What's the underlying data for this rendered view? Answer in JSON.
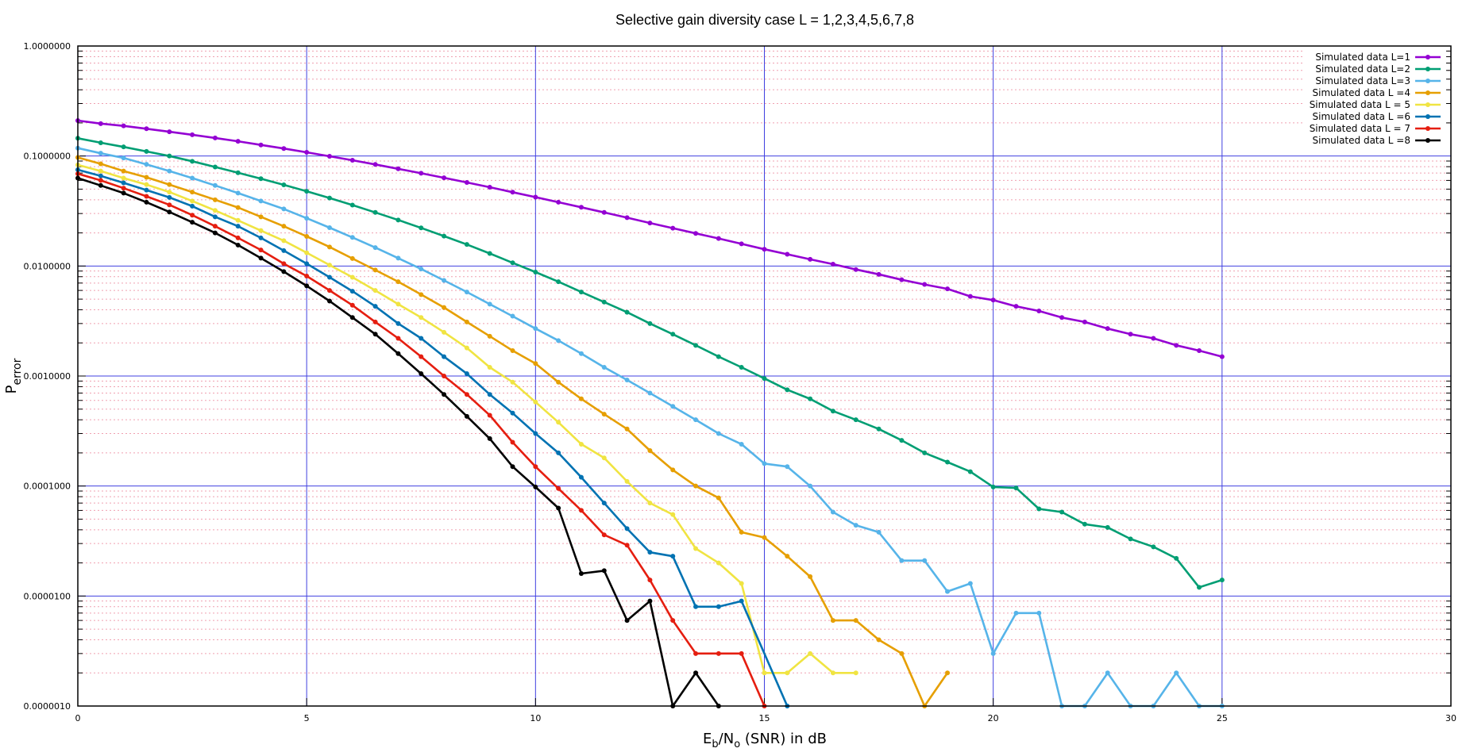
{
  "chart_data": {
    "type": "line",
    "title": "Selective gain diversity case L = 1,2,3,4,5,6,7,8",
    "xlabel": {
      "main": "E",
      "sub1": "b",
      "mid": "/N",
      "sub2": "o",
      "tail": " (SNR) in dB"
    },
    "ylabel": {
      "main": "P",
      "sub": "error"
    },
    "xlim": [
      0,
      30
    ],
    "ylim": [
      1e-06,
      1
    ],
    "yscale": "log",
    "xticks": [
      "0",
      "5",
      "10",
      "15",
      "20",
      "25",
      "30"
    ],
    "yticks": [
      "1.0000000",
      "0.1000000",
      "0.0100000",
      "0.0010000",
      "0.0001000",
      "0.0000100",
      "0.0000010"
    ],
    "grid": {
      "major": true,
      "minor": true,
      "major_color": "#4040e0",
      "minor_color": "#f0a0b0"
    },
    "legend_position": "top-right",
    "series": [
      {
        "name": "Simulated data L=1",
        "color": "#9400d3",
        "x": [
          0,
          0.5,
          1,
          1.5,
          2,
          2.5,
          3,
          3.5,
          4,
          4.5,
          5,
          5.5,
          6,
          6.5,
          7,
          7.5,
          8,
          8.5,
          9,
          9.5,
          10,
          10.5,
          11,
          11.5,
          12,
          12.5,
          13,
          13.5,
          14,
          14.5,
          15,
          15.5,
          16,
          16.5,
          17,
          17.5,
          18,
          18.5,
          19,
          19.5,
          20,
          20.5,
          21,
          21.5,
          22,
          22.5,
          23,
          23.5,
          24,
          24.5,
          25
        ],
        "y": [
          0.21,
          0.197,
          0.188,
          0.177,
          0.166,
          0.156,
          0.146,
          0.136,
          0.126,
          0.117,
          0.108,
          0.0995,
          0.0915,
          0.0838,
          0.0765,
          0.0697,
          0.0634,
          0.0575,
          0.052,
          0.0469,
          0.0423,
          0.038,
          0.0342,
          0.0307,
          0.0275,
          0.0246,
          0.0221,
          0.0198,
          0.0178,
          0.0159,
          0.0142,
          0.0128,
          0.0115,
          0.0104,
          0.0093,
          0.0084,
          0.0075,
          0.0068,
          0.0062,
          0.0053,
          0.0049,
          0.0043,
          0.0039,
          0.0034,
          0.0031,
          0.0027,
          0.0024,
          0.0022,
          0.0019,
          0.0017,
          0.0015
        ]
      },
      {
        "name": "Simulated data L=2",
        "color": "#009e73",
        "x": [
          0,
          0.5,
          1,
          1.5,
          2,
          2.5,
          3,
          3.5,
          4,
          4.5,
          5,
          5.5,
          6,
          6.5,
          7,
          7.5,
          8,
          8.5,
          9,
          9.5,
          10,
          10.5,
          11,
          11.5,
          12,
          12.5,
          13,
          13.5,
          14,
          14.5,
          15,
          15.5,
          16,
          16.5,
          17,
          17.5,
          18,
          18.5,
          19,
          19.5,
          20,
          20.5,
          21,
          21.5,
          22,
          22.5,
          23,
          23.5,
          24,
          24.5,
          25
        ],
        "y": [
          0.145,
          0.132,
          0.121,
          0.11,
          0.1,
          0.0895,
          0.0795,
          0.0705,
          0.0622,
          0.0547,
          0.0478,
          0.0415,
          0.0358,
          0.0307,
          0.0262,
          0.0222,
          0.0187,
          0.0157,
          0.013,
          0.0107,
          0.0088,
          0.0072,
          0.0058,
          0.0047,
          0.0038,
          0.003,
          0.0024,
          0.0019,
          0.0015,
          0.0012,
          0.00095,
          0.00075,
          0.00062,
          0.00048,
          0.0004,
          0.00033,
          0.00026,
          0.0002,
          0.000165,
          0.000135,
          9.8e-05,
          9.6e-05,
          6.2e-05,
          5.8e-05,
          4.5e-05,
          4.2e-05,
          3.3e-05,
          2.8e-05,
          2.2e-05,
          1.2e-05,
          1.4e-05
        ]
      },
      {
        "name": "Simulated data L=3",
        "color": "#56b4e9",
        "x": [
          0,
          0.5,
          1,
          1.5,
          2,
          2.5,
          3,
          3.5,
          4,
          4.5,
          5,
          5.5,
          6,
          6.5,
          7,
          7.5,
          8,
          8.5,
          9,
          9.5,
          10,
          10.5,
          11,
          11.5,
          12,
          12.5,
          13,
          13.5,
          14,
          14.5,
          15,
          15.5,
          16,
          16.5,
          17,
          17.5,
          18,
          18.5,
          19,
          19.5,
          20,
          20.5,
          21,
          21.5,
          22,
          22.5,
          23,
          23.5,
          24,
          24.5,
          25
        ],
        "y": [
          0.118,
          0.106,
          0.096,
          0.084,
          0.073,
          0.063,
          0.054,
          0.046,
          0.039,
          0.033,
          0.0272,
          0.0223,
          0.0182,
          0.0147,
          0.0118,
          0.0094,
          0.0074,
          0.0058,
          0.0045,
          0.0035,
          0.0027,
          0.0021,
          0.0016,
          0.0012,
          0.00092,
          0.0007,
          0.00053,
          0.0004,
          0.0003,
          0.00024,
          0.00016,
          0.00015,
          0.0001,
          5.8e-05,
          4.4e-05,
          3.8e-05,
          2.1e-05,
          2.1e-05,
          1.1e-05,
          1.3e-05,
          3e-06,
          7e-06,
          7e-06,
          1e-06,
          1e-06,
          2e-06,
          1e-06,
          1e-06,
          2e-06,
          1e-06,
          1e-06
        ]
      },
      {
        "name": "Simulated data L =4",
        "color": "#e69f00",
        "x": [
          0,
          0.5,
          1,
          1.5,
          2,
          2.5,
          3,
          3.5,
          4,
          4.5,
          5,
          5.5,
          6,
          6.5,
          7,
          7.5,
          8,
          8.5,
          9,
          9.5,
          10,
          10.5,
          11,
          11.5,
          12,
          12.5,
          13,
          13.5,
          14,
          14.5,
          15,
          15.5,
          16,
          16.5,
          17,
          17.5,
          18,
          18.5,
          19
        ],
        "y": [
          0.097,
          0.085,
          0.073,
          0.064,
          0.055,
          0.047,
          0.04,
          0.034,
          0.028,
          0.023,
          0.0186,
          0.0149,
          0.0117,
          0.0092,
          0.0072,
          0.0055,
          0.0042,
          0.0031,
          0.0023,
          0.0017,
          0.0013,
          0.00088,
          0.00062,
          0.00045,
          0.00033,
          0.00021,
          0.00014,
          0.0001,
          7.8e-05,
          3.8e-05,
          3.4e-05,
          2.3e-05,
          1.5e-05,
          6e-06,
          6e-06,
          4e-06,
          3e-06,
          1e-06,
          2e-06
        ]
      },
      {
        "name": "Simulated data L = 5",
        "color": "#f0e442",
        "x": [
          0,
          0.5,
          1,
          1.5,
          2,
          2.5,
          3,
          3.5,
          4,
          4.5,
          5,
          5.5,
          6,
          6.5,
          7,
          7.5,
          8,
          8.5,
          9,
          9.5,
          10,
          10.5,
          11,
          11.5,
          12,
          12.5,
          13,
          13.5,
          14,
          14.5,
          15,
          15.5,
          16,
          16.5,
          17
        ],
        "y": [
          0.083,
          0.073,
          0.063,
          0.055,
          0.047,
          0.039,
          0.032,
          0.026,
          0.021,
          0.017,
          0.0132,
          0.0102,
          0.0079,
          0.006,
          0.0045,
          0.0034,
          0.0025,
          0.0018,
          0.0012,
          0.00088,
          0.00058,
          0.00038,
          0.00024,
          0.00018,
          0.00011,
          7e-05,
          5.5e-05,
          2.7e-05,
          2e-05,
          1.3e-05,
          2e-06,
          2e-06,
          3e-06,
          2e-06,
          2e-06
        ]
      },
      {
        "name": "Simulated data L =6",
        "color": "#0072b2",
        "x": [
          0,
          0.5,
          1,
          1.5,
          2,
          2.5,
          3,
          3.5,
          4,
          4.5,
          5,
          5.5,
          6,
          6.5,
          7,
          7.5,
          8,
          8.5,
          9,
          9.5,
          10,
          10.5,
          11,
          11.5,
          12,
          12.5,
          13,
          13.5,
          14,
          14.5,
          15.5
        ],
        "y": [
          0.075,
          0.066,
          0.057,
          0.049,
          0.042,
          0.035,
          0.028,
          0.023,
          0.018,
          0.0138,
          0.0105,
          0.0079,
          0.0059,
          0.0043,
          0.003,
          0.0022,
          0.0015,
          0.00105,
          0.00068,
          0.00046,
          0.0003,
          0.0002,
          0.00012,
          7e-05,
          4.1e-05,
          2.5e-05,
          2.3e-05,
          8e-06,
          8e-06,
          9e-06,
          1e-06
        ]
      },
      {
        "name": "Simulated data L = 7",
        "color": "#e51e10",
        "x": [
          0,
          0.5,
          1,
          1.5,
          2,
          2.5,
          3,
          3.5,
          4,
          4.5,
          5,
          5.5,
          6,
          6.5,
          7,
          7.5,
          8,
          8.5,
          9,
          9.5,
          10,
          10.5,
          11,
          11.5,
          12,
          12.5,
          13,
          13.5,
          14,
          14.5,
          15
        ],
        "y": [
          0.069,
          0.06,
          0.051,
          0.043,
          0.036,
          0.029,
          0.023,
          0.018,
          0.014,
          0.0105,
          0.0081,
          0.006,
          0.0044,
          0.0031,
          0.0022,
          0.0015,
          0.001,
          0.00068,
          0.00044,
          0.00025,
          0.00015,
          9.5e-05,
          6e-05,
          3.6e-05,
          2.9e-05,
          1.4e-05,
          6e-06,
          3e-06,
          3e-06,
          3e-06,
          1e-06
        ]
      },
      {
        "name": "Simulated data L =8",
        "color": "#000000",
        "x": [
          0,
          0.5,
          1,
          1.5,
          2,
          2.5,
          3,
          3.5,
          4,
          4.5,
          5,
          5.5,
          6,
          6.5,
          7,
          7.5,
          8,
          8.5,
          9,
          9.5,
          10,
          10.5,
          11,
          11.5,
          12,
          12.5,
          13,
          13.5,
          14
        ],
        "y": [
          0.063,
          0.054,
          0.046,
          0.038,
          0.031,
          0.025,
          0.02,
          0.0155,
          0.0118,
          0.0089,
          0.0066,
          0.0048,
          0.0034,
          0.0024,
          0.0016,
          0.00105,
          0.00068,
          0.00043,
          0.00027,
          0.00015,
          9.8e-05,
          6.3e-05,
          1.6e-05,
          1.7e-05,
          6e-06,
          9e-06,
          1e-06,
          2e-06,
          1e-06
        ]
      }
    ]
  }
}
